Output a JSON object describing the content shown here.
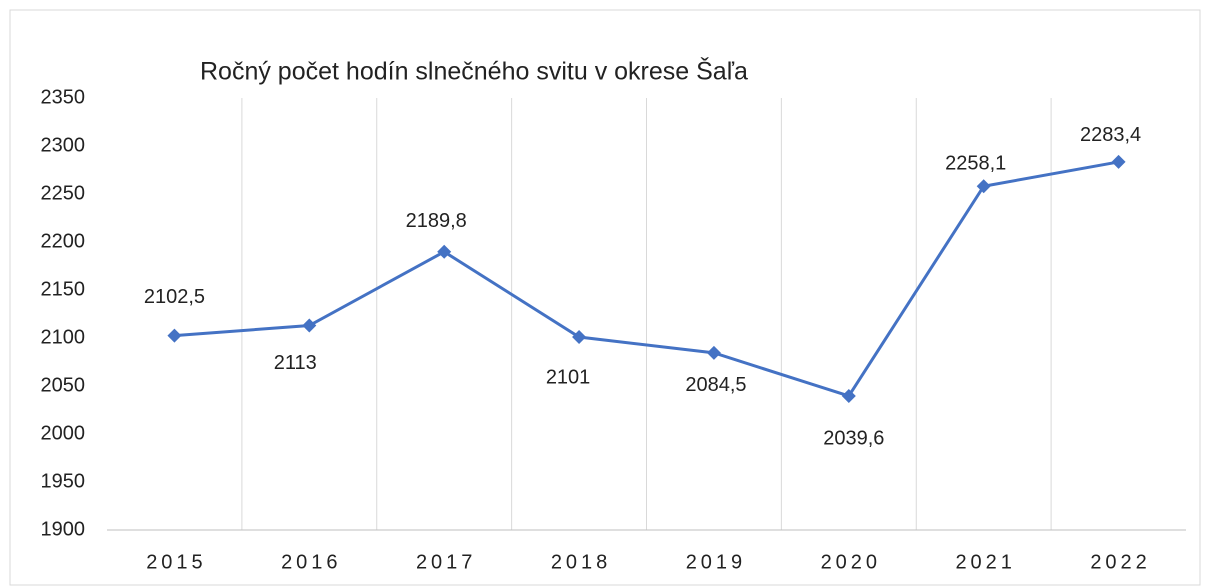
{
  "chart_data": {
    "type": "line",
    "title": "Ročný počet hodín slnečného svitu v okrese Šaľa",
    "categories": [
      "2015",
      "2016",
      "2017",
      "2018",
      "2019",
      "2020",
      "2021",
      "2022"
    ],
    "series": [
      {
        "color": "#4472c4",
        "values": [
          2102.5,
          2113,
          2189.8,
          2101,
          2084.5,
          2039.6,
          2258.1,
          2283.4
        ],
        "value_labels": [
          "2102,5",
          "2113",
          "2189,8",
          "2101",
          "2084,5",
          "2039,6",
          "2258,1",
          "2283,4"
        ]
      }
    ],
    "ylim": [
      1900,
      2350
    ],
    "yticks": [
      1900,
      1950,
      2000,
      2050,
      2100,
      2150,
      2200,
      2250,
      2300,
      2350
    ],
    "grid": "x"
  }
}
